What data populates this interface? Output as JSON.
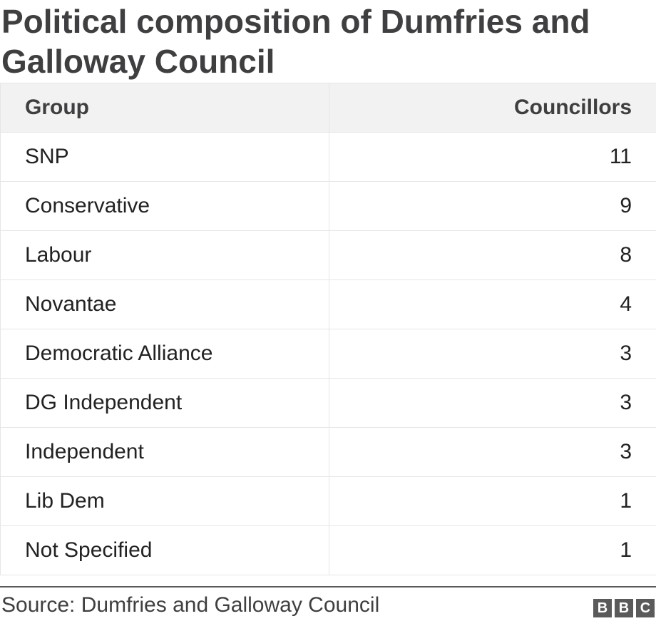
{
  "chart_data": {
    "type": "table",
    "title": "Political composition of Dumfries and Galloway Council",
    "columns": [
      "Group",
      "Councillors"
    ],
    "rows": [
      {
        "group": "SNP",
        "councillors": "11"
      },
      {
        "group": "Conservative",
        "councillors": "9"
      },
      {
        "group": "Labour",
        "councillors": "8"
      },
      {
        "group": "Novantae",
        "councillors": "4"
      },
      {
        "group": "Democratic Alliance",
        "councillors": "3"
      },
      {
        "group": "DG Independent",
        "councillors": "3"
      },
      {
        "group": "Independent",
        "councillors": "3"
      },
      {
        "group": "Lib Dem",
        "councillors": "1"
      },
      {
        "group": "Not Specified",
        "councillors": "1"
      }
    ],
    "source": "Source: Dumfries and Galloway Council"
  },
  "logo": {
    "letters": [
      "B",
      "B",
      "C"
    ],
    "color": "#5a5a5a"
  }
}
